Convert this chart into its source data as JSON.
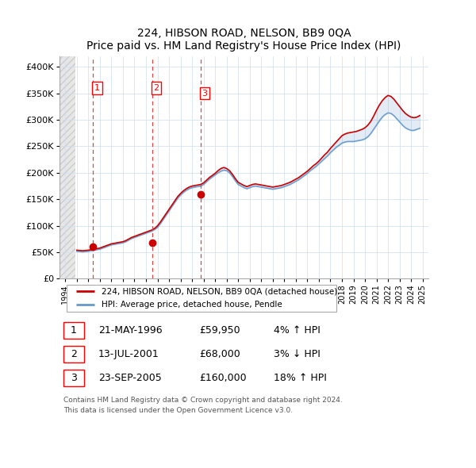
{
  "title": "224, HIBSON ROAD, NELSON, BB9 0QA",
  "subtitle": "Price paid vs. HM Land Registry's House Price Index (HPI)",
  "legend_line1": "224, HIBSON ROAD, NELSON, BB9 0QA (detached house)",
  "legend_line2": "HPI: Average price, detached house, Pendle",
  "footer1": "Contains HM Land Registry data © Crown copyright and database right 2024.",
  "footer2": "This data is licensed under the Open Government Licence v3.0.",
  "sale_color": "#cc0000",
  "hpi_color": "#6699cc",
  "dashed_line_color": "#dd4444",
  "marker_color": "#cc0000",
  "grid_color": "#ccddee",
  "sales": [
    {
      "date": 1996.39,
      "price": 59950,
      "label": "1"
    },
    {
      "date": 2001.54,
      "price": 68000,
      "label": "2"
    },
    {
      "date": 2005.73,
      "price": 160000,
      "label": "3"
    }
  ],
  "table_rows": [
    {
      "num": "1",
      "date": "21-MAY-1996",
      "price": "£59,950",
      "change": "4% ↑ HPI"
    },
    {
      "num": "2",
      "date": "13-JUL-2001",
      "price": "£68,000",
      "change": "3% ↓ HPI"
    },
    {
      "num": "3",
      "date": "23-SEP-2005",
      "price": "£160,000",
      "change": "18% ↑ HPI"
    }
  ],
  "xmin": 1993.5,
  "xmax": 2025.5,
  "ymin": 0,
  "ymax": 420000,
  "yticks": [
    0,
    50000,
    100000,
    150000,
    200000,
    250000,
    300000,
    350000,
    400000
  ],
  "ytick_labels": [
    "£0",
    "£50K",
    "£100K",
    "£150K",
    "£200K",
    "£250K",
    "£300K",
    "£350K",
    "£400K"
  ],
  "xtick_years": [
    1994,
    1995,
    1996,
    1997,
    1998,
    1999,
    2000,
    2001,
    2002,
    2003,
    2004,
    2005,
    2006,
    2007,
    2008,
    2009,
    2010,
    2011,
    2012,
    2013,
    2014,
    2015,
    2016,
    2017,
    2018,
    2019,
    2020,
    2021,
    2022,
    2023,
    2024,
    2025
  ],
  "hpi_x": [
    1995.0,
    1995.25,
    1995.5,
    1995.75,
    1996.0,
    1996.25,
    1996.5,
    1996.75,
    1997.0,
    1997.25,
    1997.5,
    1997.75,
    1998.0,
    1998.25,
    1998.5,
    1998.75,
    1999.0,
    1999.25,
    1999.5,
    1999.75,
    2000.0,
    2000.25,
    2000.5,
    2000.75,
    2001.0,
    2001.25,
    2001.5,
    2001.75,
    2002.0,
    2002.25,
    2002.5,
    2002.75,
    2003.0,
    2003.25,
    2003.5,
    2003.75,
    2004.0,
    2004.25,
    2004.5,
    2004.75,
    2005.0,
    2005.25,
    2005.5,
    2005.75,
    2006.0,
    2006.25,
    2006.5,
    2006.75,
    2007.0,
    2007.25,
    2007.5,
    2007.75,
    2008.0,
    2008.25,
    2008.5,
    2008.75,
    2009.0,
    2009.25,
    2009.5,
    2009.75,
    2010.0,
    2010.25,
    2010.5,
    2010.75,
    2011.0,
    2011.25,
    2011.5,
    2011.75,
    2012.0,
    2012.25,
    2012.5,
    2012.75,
    2013.0,
    2013.25,
    2013.5,
    2013.75,
    2014.0,
    2014.25,
    2014.5,
    2014.75,
    2015.0,
    2015.25,
    2015.5,
    2015.75,
    2016.0,
    2016.25,
    2016.5,
    2016.75,
    2017.0,
    2017.25,
    2017.5,
    2017.75,
    2018.0,
    2018.25,
    2018.5,
    2018.75,
    2019.0,
    2019.25,
    2019.5,
    2019.75,
    2020.0,
    2020.25,
    2020.5,
    2020.75,
    2021.0,
    2021.25,
    2021.5,
    2021.75,
    2022.0,
    2022.25,
    2022.5,
    2022.75,
    2023.0,
    2023.25,
    2023.5,
    2023.75,
    2024.0,
    2024.25,
    2024.5,
    2024.75
  ],
  "hpi_y": [
    52000,
    51500,
    51000,
    51500,
    52000,
    53000,
    54000,
    55000,
    56000,
    58000,
    60000,
    62000,
    64000,
    65000,
    66000,
    67000,
    68000,
    70000,
    73000,
    76000,
    78000,
    80000,
    82000,
    84000,
    86000,
    88000,
    90000,
    93000,
    97000,
    104000,
    112000,
    120000,
    128000,
    136000,
    144000,
    152000,
    158000,
    163000,
    167000,
    170000,
    172000,
    173000,
    174000,
    175000,
    178000,
    183000,
    188000,
    192000,
    196000,
    200000,
    203000,
    205000,
    204000,
    200000,
    193000,
    185000,
    178000,
    175000,
    172000,
    170000,
    172000,
    174000,
    175000,
    174000,
    173000,
    172000,
    171000,
    170000,
    169000,
    170000,
    171000,
    172000,
    174000,
    176000,
    178000,
    181000,
    184000,
    187000,
    191000,
    195000,
    199000,
    204000,
    208000,
    212000,
    217000,
    222000,
    227000,
    232000,
    238000,
    243000,
    248000,
    252000,
    256000,
    258000,
    259000,
    259000,
    259000,
    260000,
    261000,
    262000,
    264000,
    268000,
    274000,
    282000,
    290000,
    298000,
    305000,
    310000,
    313000,
    312000,
    308000,
    302000,
    296000,
    290000,
    285000,
    282000,
    280000,
    280000,
    282000,
    284000
  ],
  "sale_x": [
    1995.0,
    1995.25,
    1995.5,
    1995.75,
    1996.0,
    1996.25,
    1996.5,
    1996.75,
    1997.0,
    1997.25,
    1997.5,
    1997.75,
    1998.0,
    1998.25,
    1998.5,
    1998.75,
    1999.0,
    1999.25,
    1999.5,
    1999.75,
    2000.0,
    2000.25,
    2000.5,
    2000.75,
    2001.0,
    2001.25,
    2001.5,
    2001.75,
    2002.0,
    2002.25,
    2002.5,
    2002.75,
    2003.0,
    2003.25,
    2003.5,
    2003.75,
    2004.0,
    2004.25,
    2004.5,
    2004.75,
    2005.0,
    2005.25,
    2005.5,
    2005.75,
    2006.0,
    2006.25,
    2006.5,
    2006.75,
    2007.0,
    2007.25,
    2007.5,
    2007.75,
    2008.0,
    2008.25,
    2008.5,
    2008.75,
    2009.0,
    2009.25,
    2009.5,
    2009.75,
    2010.0,
    2010.25,
    2010.5,
    2010.75,
    2011.0,
    2011.25,
    2011.5,
    2011.75,
    2012.0,
    2012.25,
    2012.5,
    2012.75,
    2013.0,
    2013.25,
    2013.5,
    2013.75,
    2014.0,
    2014.25,
    2014.5,
    2014.75,
    2015.0,
    2015.25,
    2015.5,
    2015.75,
    2016.0,
    2016.25,
    2016.5,
    2016.75,
    2017.0,
    2017.25,
    2017.5,
    2017.75,
    2018.0,
    2018.25,
    2018.5,
    2018.75,
    2019.0,
    2019.25,
    2019.5,
    2019.75,
    2020.0,
    2020.25,
    2020.5,
    2020.75,
    2021.0,
    2021.25,
    2021.5,
    2021.75,
    2022.0,
    2022.25,
    2022.5,
    2022.75,
    2023.0,
    2023.25,
    2023.5,
    2023.75,
    2024.0,
    2024.25,
    2024.5,
    2024.75
  ],
  "sale_y": [
    54000,
    53500,
    53000,
    53500,
    54000,
    55000,
    56000,
    57000,
    58000,
    60000,
    62000,
    64000,
    66000,
    67000,
    68000,
    69000,
    70000,
    72000,
    75000,
    78000,
    80000,
    82000,
    84000,
    86000,
    88000,
    90000,
    92000,
    95000,
    100000,
    107000,
    115000,
    123000,
    131000,
    139000,
    147000,
    155000,
    161000,
    166000,
    170000,
    173000,
    175000,
    176000,
    177000,
    178000,
    181000,
    186000,
    191000,
    195000,
    199000,
    204000,
    208000,
    210000,
    208000,
    204000,
    197000,
    189000,
    182000,
    179000,
    176000,
    174000,
    176000,
    178000,
    179000,
    178000,
    177000,
    176000,
    175000,
    174000,
    173000,
    174000,
    175000,
    176000,
    178000,
    180000,
    182000,
    185000,
    188000,
    191000,
    195000,
    199000,
    203000,
    208000,
    213000,
    217000,
    222000,
    228000,
    234000,
    239000,
    246000,
    252000,
    258000,
    264000,
    270000,
    273000,
    275000,
    276000,
    277000,
    278000,
    280000,
    282000,
    285000,
    290000,
    297000,
    307000,
    318000,
    328000,
    336000,
    342000,
    346000,
    344000,
    339000,
    332000,
    325000,
    318000,
    312000,
    308000,
    305000,
    304000,
    305000,
    308000
  ]
}
